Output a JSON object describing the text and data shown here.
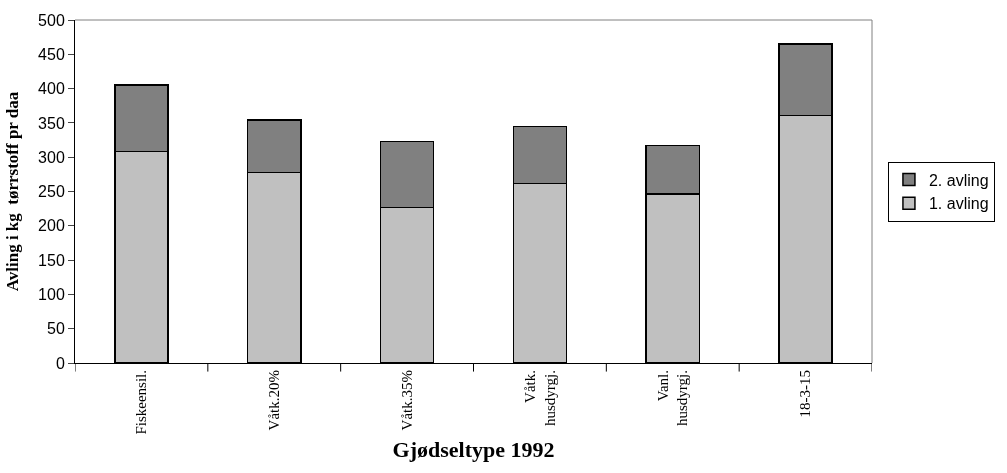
{
  "chart_data": {
    "type": "bar",
    "stacked": true,
    "xlabel": "Gjødseltype 1992",
    "ylabel": "Avling i kg  tørrstoff pr daa",
    "categories": [
      "Fiskeensil.",
      "Våtk.20%",
      "Våtk.35%",
      "Våtk. husdyrgj.",
      "Vanl. husdyrgj.",
      "18-3-15"
    ],
    "series": [
      {
        "name": "1. avling",
        "color": "#c0c0c0",
        "values": [
          308,
          278,
          227,
          262,
          246,
          361
        ]
      },
      {
        "name": "2. avling",
        "color": "#808080",
        "values": [
          97,
          76,
          96,
          83,
          71,
          104
        ]
      }
    ],
    "ylim": [
      0,
      500
    ],
    "yticks": [
      0,
      50,
      100,
      150,
      200,
      250,
      300,
      350,
      400,
      450,
      500
    ],
    "legend": "right"
  }
}
